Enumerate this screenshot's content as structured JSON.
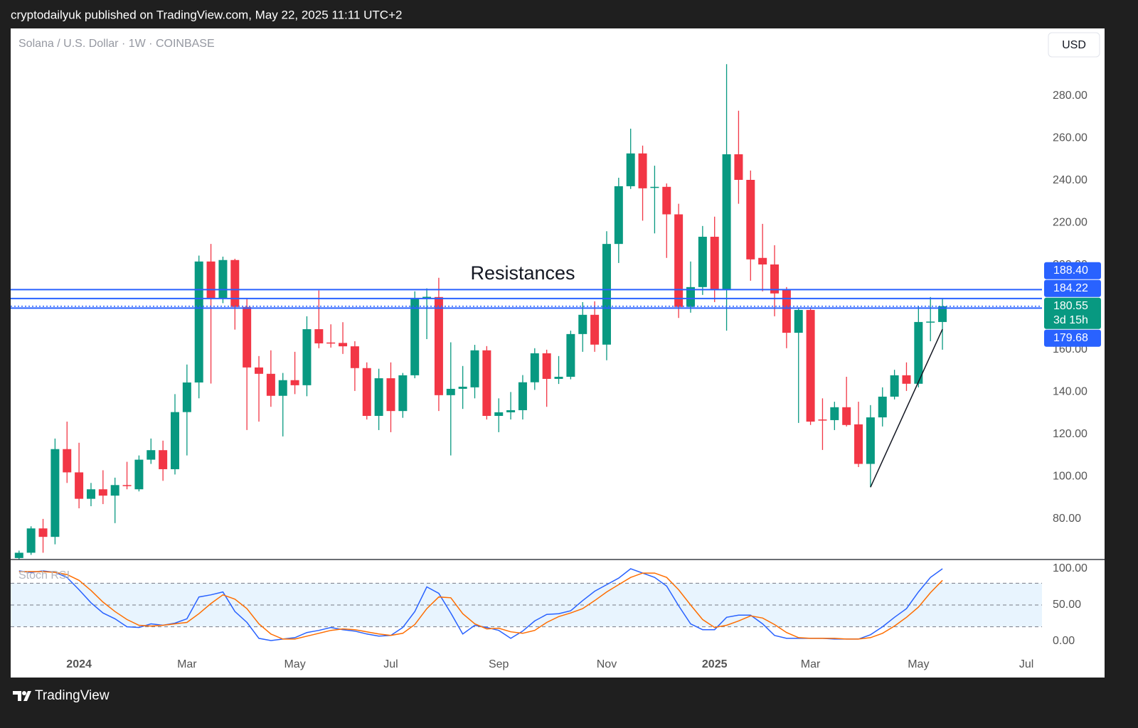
{
  "header": {
    "publisher_line": "cryptodailyuk published on TradingView.com, May 22, 2025 11:11 UTC+2"
  },
  "footer": {
    "brand": "TradingView"
  },
  "currency_button": "USD",
  "chart_data": [
    {
      "type": "candlestick",
      "title": "Solana / U.S. Dollar · 1W · COINBASE",
      "up_color": "#089981",
      "down_color": "#f23645",
      "xlim": [
        -0.7,
        85.3
      ],
      "ylim": [
        60.8,
        311.9
      ],
      "yticks": [
        {
          "value": 80,
          "label": "80.00"
        },
        {
          "value": 100,
          "label": "100.00"
        },
        {
          "value": 120,
          "label": "120.00"
        },
        {
          "value": 140,
          "label": "140.00"
        },
        {
          "value": 160,
          "label": "160.00"
        },
        {
          "value": 180,
          "label": "180.00"
        },
        {
          "value": 200,
          "label": "200.00"
        },
        {
          "value": 220,
          "label": "220.00"
        },
        {
          "value": 240,
          "label": "240.00"
        },
        {
          "value": 260,
          "label": "260.00"
        },
        {
          "value": 280,
          "label": "280.00"
        }
      ],
      "open": [
        61.5,
        64,
        75.5,
        71.5,
        113,
        102,
        89.5,
        94,
        91,
        96,
        94,
        108,
        112.5,
        103.5,
        130.5,
        144.5,
        201.7,
        184,
        202.4,
        180.2,
        151.6,
        148.6,
        138.2,
        145.6,
        143.2,
        169.7,
        163.4,
        163.2,
        161.6,
        151.3,
        128.7,
        146.5,
        131,
        147.9,
        184.2,
        184.9,
        138.5,
        141.5,
        142.2,
        159.7,
        128.7,
        130.4,
        131.4,
        144.6,
        158.3,
        146.2,
        147.2,
        167.4,
        176.5,
        162.4,
        210,
        237.3,
        252.8,
        236.5,
        237,
        224,
        180.2,
        189.6,
        213.4,
        188.2,
        252.4,
        240.3,
        203.4,
        200.3,
        188.2,
        168,
        178.8,
        127,
        126.7,
        132.8,
        124.7,
        106,
        128,
        137.8,
        147.9,
        143.9,
        173.1,
        173.1
      ],
      "high": [
        65,
        76.5,
        80,
        118,
        126,
        116,
        97,
        103,
        99.5,
        107,
        110,
        118,
        117,
        139,
        153,
        204.5,
        210,
        204,
        203,
        184,
        157,
        159.7,
        149,
        159,
        175.8,
        188,
        172,
        173,
        164,
        154,
        151,
        154,
        149,
        187.6,
        189,
        194,
        163.5,
        152.3,
        162.3,
        161.7,
        137,
        140,
        148,
        160.7,
        160,
        157,
        169,
        182.5,
        182.9,
        216,
        241.3,
        264.5,
        256.5,
        247,
        238.6,
        229,
        201.7,
        218.5,
        222.9,
        295,
        273,
        244.7,
        219.5,
        209.4,
        189.6,
        180,
        180,
        137,
        135.4,
        147.2,
        135.4,
        133.8,
        142.2,
        150.5,
        154,
        180.8,
        184.9,
        184.2
      ],
      "low": [
        61,
        63,
        64,
        68,
        97,
        85,
        86,
        87,
        78,
        94,
        93,
        106,
        98,
        101,
        110,
        137,
        144,
        182,
        169.5,
        122,
        126,
        133,
        119,
        139,
        138,
        160.7,
        161,
        158,
        140.5,
        127,
        122,
        121,
        127.8,
        146.5,
        165,
        131,
        110,
        132,
        137,
        127,
        121,
        127,
        127,
        141,
        133,
        143.8,
        146,
        159,
        159,
        155,
        201,
        236,
        221,
        215,
        203.4,
        175,
        177.5,
        185.9,
        182.5,
        169,
        229,
        192.6,
        187.6,
        175.8,
        160.7,
        125.4,
        124.4,
        112.6,
        122,
        123.7,
        104.5,
        95,
        123.7,
        136.5,
        140.5,
        142.2,
        164,
        160
      ],
      "close": [
        64,
        75.5,
        71.5,
        113,
        102,
        89.5,
        94,
        91,
        96,
        95.5,
        108,
        112.5,
        103.5,
        130.5,
        144.5,
        201.7,
        184,
        202.4,
        180.2,
        151.6,
        148.6,
        138.2,
        145.6,
        143.2,
        169.7,
        163,
        163,
        161.6,
        151.3,
        128.7,
        146.5,
        131,
        147.9,
        184.2,
        185,
        138.5,
        141.5,
        142.5,
        159.7,
        128.7,
        130.4,
        131.4,
        144.6,
        158.3,
        146.2,
        147.2,
        167.4,
        176.5,
        162.4,
        210,
        237.3,
        252.8,
        236.3,
        237,
        224,
        180.2,
        189.6,
        213.4,
        188.2,
        252.4,
        240.3,
        202.7,
        200.3,
        186.6,
        168,
        178.8,
        126,
        126.7,
        132.8,
        124.4,
        106,
        128,
        137.8,
        147.9,
        143.9,
        173.1,
        173.3,
        180.55
      ],
      "hlines": [
        {
          "value": 188.4,
          "label": "188.40",
          "color": "#2962ff"
        },
        {
          "value": 184.22,
          "label": "184.22",
          "color": "#2962ff"
        },
        {
          "value": 180.55,
          "label": "180.55",
          "countdown": "3d 15h",
          "color": "#089981",
          "style": "dotted"
        },
        {
          "value": 179.68,
          "label": "179.68",
          "color": "#2962ff"
        }
      ],
      "annotation": "Resistances",
      "trendline": {
        "x": [
          71,
          77
        ],
        "y": [
          95,
          169.7
        ]
      }
    },
    {
      "type": "line",
      "title": "Stoch RSI",
      "xlim": [
        -0.7,
        85.3
      ],
      "ylim": [
        -15.7,
        112.7
      ],
      "xticks": [
        {
          "value": 5,
          "label": "2024"
        },
        {
          "value": 14,
          "label": "Mar"
        },
        {
          "value": 23,
          "label": "May"
        },
        {
          "value": 31,
          "label": "Jul"
        },
        {
          "value": 40,
          "label": "Sep"
        },
        {
          "value": 49,
          "label": "Nov"
        },
        {
          "value": 58,
          "label": "2025"
        },
        {
          "value": 66,
          "label": "Mar"
        },
        {
          "value": 75,
          "label": "May"
        },
        {
          "value": 84,
          "label": "Jul"
        }
      ],
      "yticks": [
        {
          "value": 0,
          "label": "0.00"
        },
        {
          "value": 50,
          "label": "50.00"
        },
        {
          "value": 100,
          "label": "100.00"
        }
      ],
      "levels": [
        20,
        50,
        80
      ],
      "band": [
        20,
        80
      ],
      "series": [
        {
          "color": "#2962ff",
          "values": [
            97,
            95,
            97,
            95,
            88,
            71,
            53,
            39,
            31,
            20,
            19,
            24,
            22,
            25,
            31,
            61,
            64,
            68,
            41,
            26,
            4,
            1,
            3,
            5,
            12,
            15,
            19,
            16,
            14,
            10,
            7,
            8,
            19,
            41,
            75,
            66,
            39,
            10,
            22,
            19,
            15,
            4,
            14,
            28,
            37,
            38,
            42,
            56,
            69,
            78,
            87,
            100,
            94,
            88,
            76,
            49,
            24,
            16,
            16,
            33,
            36,
            36,
            24,
            8,
            4,
            4,
            4,
            4,
            3,
            3,
            3,
            9,
            20,
            33,
            45,
            68,
            88,
            100
          ]
        },
        {
          "color": "#ff6d00",
          "values": [
            96,
            96,
            96,
            95,
            92,
            84,
            70,
            54,
            41,
            30,
            22,
            21,
            22,
            24,
            26,
            38,
            52,
            64,
            58,
            45,
            24,
            10,
            3,
            3,
            7,
            11,
            15,
            17,
            16,
            13,
            10,
            8,
            11,
            23,
            45,
            61,
            60,
            38,
            24,
            17,
            18,
            13,
            11,
            15,
            26,
            34,
            39,
            45,
            56,
            68,
            78,
            88,
            94,
            94,
            88,
            71,
            50,
            30,
            19,
            22,
            28,
            35,
            32,
            23,
            12,
            5,
            4,
            4,
            4,
            3,
            3,
            5,
            11,
            21,
            33,
            47,
            67,
            84
          ]
        }
      ]
    }
  ]
}
